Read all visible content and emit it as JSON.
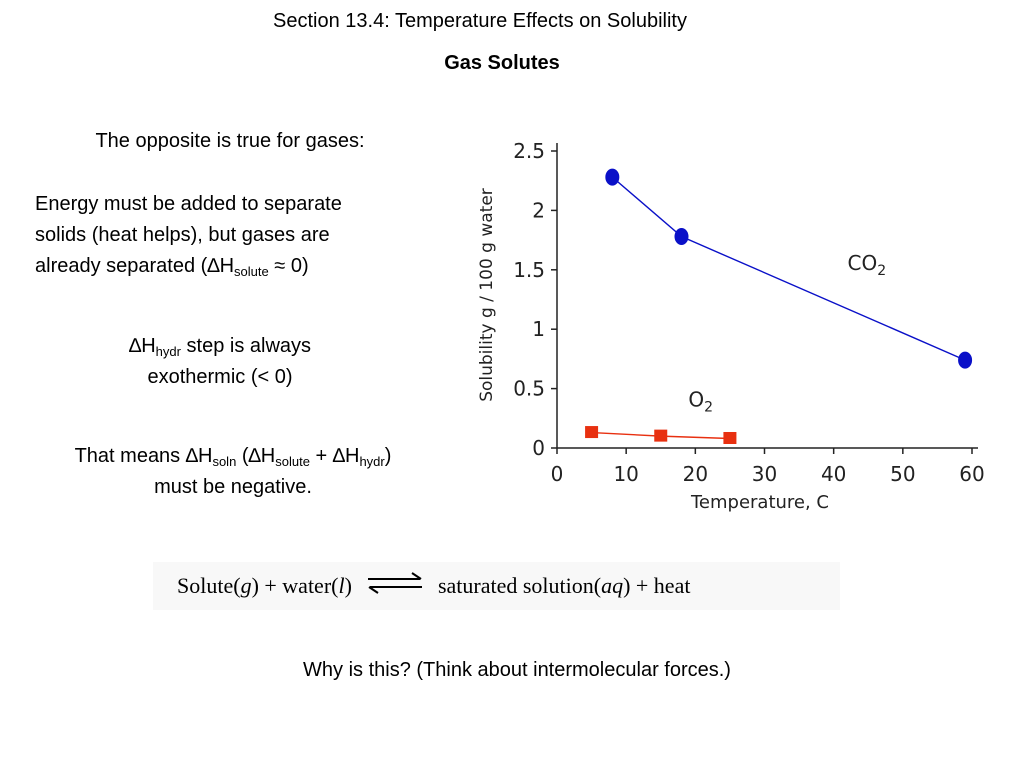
{
  "slide": {
    "title": "Section 13.4: Temperature Effects on Solubility",
    "subtitle": "Gas Solutes",
    "p1": "The opposite is true for gases:",
    "p2": {
      "line1": "Energy must be added to separate",
      "line2": "solids (heat helps), but gases are",
      "line3_pre": "already separated (",
      "delta": "∆",
      "h": "H",
      "sub": "solute",
      "line3_post": " ≈ 0)"
    },
    "p3": {
      "delta": "∆",
      "h": "H",
      "sub": "hydr",
      "line1_post": " step is always",
      "line2": "exothermic (< 0)"
    },
    "p4": {
      "pre": "That means ",
      "d1": "∆",
      "h1": "H",
      "sub1": "soln",
      "open": " (",
      "d2": "∆",
      "h2": "H",
      "sub2": "solute",
      "plus": " + ",
      "d3": "∆",
      "h3": "H",
      "sub3": "hydr",
      "close": ")",
      "line2": "must be negative."
    },
    "equation": {
      "left_a": "Solute(",
      "left_g": "g",
      "left_b": ") + water(",
      "left_l": "l",
      "left_c": ")",
      "right_a": "saturated solution(",
      "right_aq": "aq",
      "right_b": ") + heat"
    },
    "question": "Why is this?  (Think about intermolecular forces.)"
  },
  "chart_data": {
    "type": "line",
    "xlabel": "Temperature, C",
    "ylabel": "Solubility g / 100 g water",
    "xlim": [
      0,
      60
    ],
    "ylim": [
      0,
      2.5
    ],
    "x_ticks": [
      "0",
      "10",
      "20",
      "30",
      "40",
      "50",
      "60"
    ],
    "y_ticks": [
      "0",
      "0.5",
      "1",
      "1.5",
      "2",
      "2.5"
    ],
    "grid": false,
    "series": [
      {
        "name": "CO",
        "name_sub": "2",
        "color": "#0a10c8",
        "marker": "circle",
        "points": [
          {
            "x": 8,
            "y": 2.28
          },
          {
            "x": 18,
            "y": 1.78
          },
          {
            "x": 59,
            "y": 0.74
          }
        ]
      },
      {
        "name": "O",
        "name_sub": "2",
        "color": "#e83010",
        "marker": "square",
        "points": [
          {
            "x": 5,
            "y": 0.13
          },
          {
            "x": 15,
            "y": 0.1
          },
          {
            "x": 25,
            "y": 0.08
          }
        ]
      }
    ]
  }
}
